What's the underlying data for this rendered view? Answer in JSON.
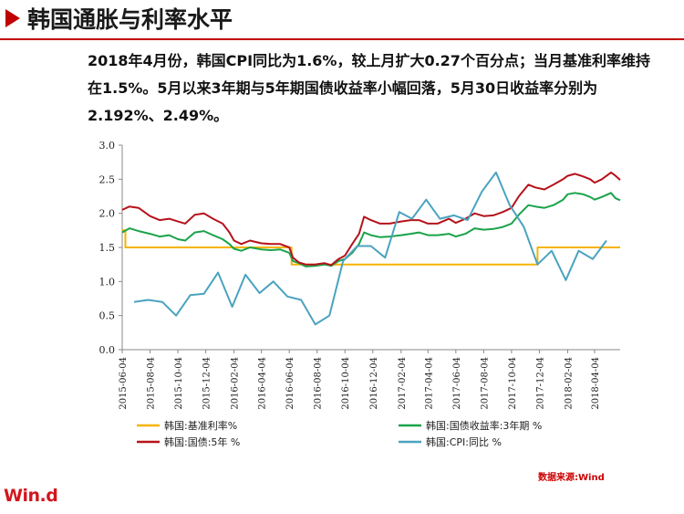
{
  "header": {
    "title": "韩国通胀与利率水平",
    "summary": "2018年4月份，韩国CPI同比为1.6%，较上月扩大0.27个百分点；当月基准利率维持在1.5%。5月以来3年期与5年期国债收益率小幅回落，5月30日收益率分别为2.192%、2.49%。"
  },
  "footer": {
    "source": "数据来源:Wind",
    "logo": "Win.d"
  },
  "colors": {
    "accent": "#c00000",
    "base_rate": "#f5b400",
    "bond_3y": "#1aa34a",
    "bond_5y": "#b5121b",
    "cpi": "#4aa3c0"
  },
  "chart_data": {
    "type": "line",
    "title": "",
    "xlabel": "",
    "ylabel": "",
    "ylim": [
      0,
      3
    ],
    "yticks": [
      "0.0",
      "0.5",
      "1.0",
      "1.5",
      "2.0",
      "2.5",
      "3.0"
    ],
    "xlim": [
      "2015-06-04",
      "2018-05-30"
    ],
    "xticks": [
      "2015-06-04",
      "2015-08-04",
      "2015-10-04",
      "2015-12-04",
      "2016-02-04",
      "2016-04-04",
      "2016-06-04",
      "2016-08-04",
      "2016-10-04",
      "2016-12-04",
      "2017-02-04",
      "2017-04-04",
      "2017-06-04",
      "2017-08-04",
      "2017-10-04",
      "2017-12-04",
      "2018-02-04",
      "2018-04-04"
    ],
    "grid": false,
    "legend_position": "bottom",
    "series": [
      {
        "name": "韩国:基准利率%",
        "color_key": "base_rate",
        "step": true,
        "points": [
          [
            "2015-06-04",
            1.75
          ],
          [
            "2015-06-11",
            1.5
          ],
          [
            "2016-06-09",
            1.25
          ],
          [
            "2017-11-30",
            1.5
          ],
          [
            "2018-05-30",
            1.5
          ]
        ]
      },
      {
        "name": "韩国:国债收益率:3年期  %",
        "color_key": "bond_3y",
        "points": [
          [
            "2015-06-04",
            1.72
          ],
          [
            "2015-06-20",
            1.78
          ],
          [
            "2015-07-10",
            1.74
          ],
          [
            "2015-08-04",
            1.7
          ],
          [
            "2015-08-25",
            1.66
          ],
          [
            "2015-09-15",
            1.68
          ],
          [
            "2015-10-04",
            1.62
          ],
          [
            "2015-10-20",
            1.6
          ],
          [
            "2015-11-10",
            1.72
          ],
          [
            "2015-11-30",
            1.74
          ],
          [
            "2015-12-20",
            1.68
          ],
          [
            "2016-01-10",
            1.62
          ],
          [
            "2016-01-25",
            1.55
          ],
          [
            "2016-02-04",
            1.48
          ],
          [
            "2016-02-20",
            1.45
          ],
          [
            "2016-03-10",
            1.5
          ],
          [
            "2016-04-04",
            1.47
          ],
          [
            "2016-04-25",
            1.46
          ],
          [
            "2016-05-15",
            1.47
          ],
          [
            "2016-06-04",
            1.42
          ],
          [
            "2016-06-12",
            1.3
          ],
          [
            "2016-06-25",
            1.27
          ],
          [
            "2016-07-10",
            1.22
          ],
          [
            "2016-07-30",
            1.23
          ],
          [
            "2016-08-20",
            1.25
          ],
          [
            "2016-09-04",
            1.23
          ],
          [
            "2016-09-20",
            1.3
          ],
          [
            "2016-10-04",
            1.33
          ],
          [
            "2016-10-20",
            1.42
          ],
          [
            "2016-11-04",
            1.55
          ],
          [
            "2016-11-15",
            1.72
          ],
          [
            "2016-11-30",
            1.68
          ],
          [
            "2016-12-20",
            1.65
          ],
          [
            "2017-01-10",
            1.66
          ],
          [
            "2017-02-04",
            1.68
          ],
          [
            "2017-02-25",
            1.7
          ],
          [
            "2017-03-15",
            1.72
          ],
          [
            "2017-04-04",
            1.68
          ],
          [
            "2017-04-25",
            1.68
          ],
          [
            "2017-05-20",
            1.7
          ],
          [
            "2017-06-04",
            1.66
          ],
          [
            "2017-06-25",
            1.7
          ],
          [
            "2017-07-15",
            1.78
          ],
          [
            "2017-08-04",
            1.76
          ],
          [
            "2017-08-25",
            1.77
          ],
          [
            "2017-09-15",
            1.8
          ],
          [
            "2017-10-04",
            1.85
          ],
          [
            "2017-10-20",
            1.98
          ],
          [
            "2017-11-10",
            2.12
          ],
          [
            "2017-11-25",
            2.1
          ],
          [
            "2017-12-15",
            2.08
          ],
          [
            "2018-01-04",
            2.12
          ],
          [
            "2018-01-25",
            2.2
          ],
          [
            "2018-02-04",
            2.28
          ],
          [
            "2018-02-20",
            2.3
          ],
          [
            "2018-03-10",
            2.28
          ],
          [
            "2018-03-25",
            2.24
          ],
          [
            "2018-04-04",
            2.2
          ],
          [
            "2018-04-20",
            2.24
          ],
          [
            "2018-05-10",
            2.3
          ],
          [
            "2018-05-20",
            2.22
          ],
          [
            "2018-05-30",
            2.192
          ]
        ]
      },
      {
        "name": "韩国:国债:5年  %",
        "color_key": "bond_5y",
        "points": [
          [
            "2015-06-04",
            2.05
          ],
          [
            "2015-06-20",
            2.1
          ],
          [
            "2015-07-10",
            2.08
          ],
          [
            "2015-08-04",
            1.96
          ],
          [
            "2015-08-25",
            1.9
          ],
          [
            "2015-09-15",
            1.92
          ],
          [
            "2015-10-04",
            1.88
          ],
          [
            "2015-10-20",
            1.85
          ],
          [
            "2015-11-10",
            1.98
          ],
          [
            "2015-11-30",
            2.0
          ],
          [
            "2015-12-20",
            1.92
          ],
          [
            "2016-01-10",
            1.85
          ],
          [
            "2016-01-25",
            1.72
          ],
          [
            "2016-02-04",
            1.6
          ],
          [
            "2016-02-20",
            1.55
          ],
          [
            "2016-03-10",
            1.6
          ],
          [
            "2016-04-04",
            1.56
          ],
          [
            "2016-04-25",
            1.55
          ],
          [
            "2016-05-15",
            1.55
          ],
          [
            "2016-06-04",
            1.5
          ],
          [
            "2016-06-12",
            1.35
          ],
          [
            "2016-06-25",
            1.28
          ],
          [
            "2016-07-10",
            1.25
          ],
          [
            "2016-07-30",
            1.25
          ],
          [
            "2016-08-20",
            1.27
          ],
          [
            "2016-09-04",
            1.24
          ],
          [
            "2016-09-20",
            1.33
          ],
          [
            "2016-10-04",
            1.38
          ],
          [
            "2016-10-20",
            1.55
          ],
          [
            "2016-11-04",
            1.7
          ],
          [
            "2016-11-15",
            1.95
          ],
          [
            "2016-11-30",
            1.9
          ],
          [
            "2016-12-20",
            1.85
          ],
          [
            "2017-01-10",
            1.85
          ],
          [
            "2017-02-04",
            1.88
          ],
          [
            "2017-02-25",
            1.9
          ],
          [
            "2017-03-15",
            1.9
          ],
          [
            "2017-04-04",
            1.85
          ],
          [
            "2017-04-25",
            1.85
          ],
          [
            "2017-05-20",
            1.92
          ],
          [
            "2017-06-04",
            1.86
          ],
          [
            "2017-06-25",
            1.92
          ],
          [
            "2017-07-15",
            2.0
          ],
          [
            "2017-08-04",
            1.96
          ],
          [
            "2017-08-25",
            1.97
          ],
          [
            "2017-09-15",
            2.02
          ],
          [
            "2017-10-04",
            2.08
          ],
          [
            "2017-10-20",
            2.25
          ],
          [
            "2017-11-10",
            2.42
          ],
          [
            "2017-11-25",
            2.38
          ],
          [
            "2017-12-15",
            2.35
          ],
          [
            "2018-01-04",
            2.42
          ],
          [
            "2018-01-25",
            2.5
          ],
          [
            "2018-02-04",
            2.55
          ],
          [
            "2018-02-20",
            2.58
          ],
          [
            "2018-03-10",
            2.54
          ],
          [
            "2018-03-25",
            2.5
          ],
          [
            "2018-04-04",
            2.45
          ],
          [
            "2018-04-20",
            2.5
          ],
          [
            "2018-05-10",
            2.6
          ],
          [
            "2018-05-20",
            2.55
          ],
          [
            "2018-05-30",
            2.49
          ]
        ]
      },
      {
        "name": "韩国:CPI:同比  %",
        "color_key": "cpi",
        "points": [
          [
            "2015-06-30",
            0.7
          ],
          [
            "2015-07-31",
            0.73
          ],
          [
            "2015-08-31",
            0.7
          ],
          [
            "2015-09-30",
            0.5
          ],
          [
            "2015-10-31",
            0.8
          ],
          [
            "2015-11-30",
            0.82
          ],
          [
            "2015-12-31",
            1.13
          ],
          [
            "2016-01-31",
            0.63
          ],
          [
            "2016-02-29",
            1.1
          ],
          [
            "2016-03-31",
            0.83
          ],
          [
            "2016-04-30",
            1.0
          ],
          [
            "2016-05-31",
            0.78
          ],
          [
            "2016-06-30",
            0.73
          ],
          [
            "2016-07-31",
            0.37
          ],
          [
            "2016-08-31",
            0.5
          ],
          [
            "2016-09-30",
            1.3
          ],
          [
            "2016-10-31",
            1.52
          ],
          [
            "2016-11-30",
            1.52
          ],
          [
            "2016-12-31",
            1.35
          ],
          [
            "2017-01-31",
            2.02
          ],
          [
            "2017-02-28",
            1.92
          ],
          [
            "2017-03-31",
            2.2
          ],
          [
            "2017-04-30",
            1.92
          ],
          [
            "2017-05-31",
            1.97
          ],
          [
            "2017-06-30",
            1.9
          ],
          [
            "2017-07-31",
            2.32
          ],
          [
            "2017-08-31",
            2.6
          ],
          [
            "2017-09-30",
            2.12
          ],
          [
            "2017-10-31",
            1.8
          ],
          [
            "2017-11-30",
            1.25
          ],
          [
            "2017-12-31",
            1.45
          ],
          [
            "2018-01-31",
            1.02
          ],
          [
            "2018-02-28",
            1.45
          ],
          [
            "2018-03-31",
            1.33
          ],
          [
            "2018-04-30",
            1.6
          ]
        ]
      }
    ]
  }
}
